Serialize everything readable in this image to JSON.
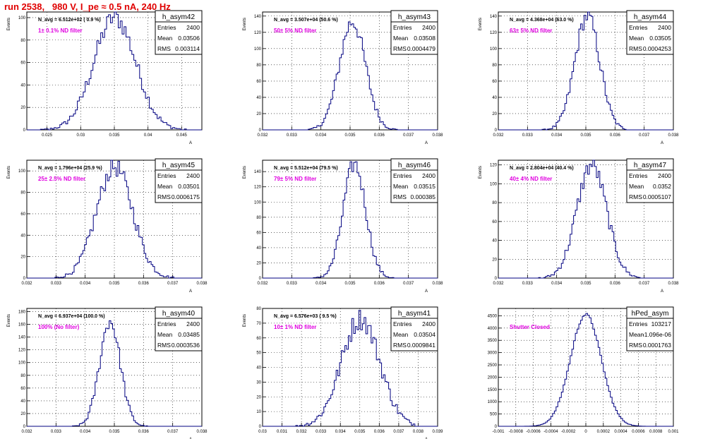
{
  "header": {
    "title": "run 2538,   980 V, I_pe ≈ 0.5 nA, 240 Hz"
  },
  "colors": {
    "hist_line": "#000080",
    "annotation": "#e000e0",
    "title": "#e00000",
    "grid": "#000000"
  },
  "chart_data": [
    {
      "type": "bar",
      "name": "h_asym42",
      "ylabel": "Events",
      "xlabel": "A",
      "navg": "N_avg = 6.512e+02 ( 0.9 %)",
      "filter": "1± 0.1% ND filter",
      "stats": {
        "entries": "2400",
        "mean": "0.03506",
        "rms": "0.003114"
      },
      "xlim": [
        0.022,
        0.048
      ],
      "ylim": [
        0,
        105
      ],
      "xticks": [
        0.025,
        0.03,
        0.035,
        0.04,
        0.045
      ],
      "xtick_labels": [
        "0.025",
        "0.03",
        "0.035",
        "0.04",
        "0.045"
      ],
      "yticks": [
        0,
        20,
        40,
        60,
        80,
        100
      ],
      "ytick_labels": [
        "0",
        "20",
        "40",
        "60",
        "80",
        "100"
      ],
      "mean": 0.03506,
      "sigma": 0.003114,
      "peak": 100,
      "bins": 90
    },
    {
      "type": "bar",
      "name": "h_asym43",
      "ylabel": "Events",
      "xlabel": "A",
      "navg": "N_avg = 3.507e+04 (50.6 %)",
      "filter": "50± 5% ND filter",
      "stats": {
        "entries": "2400",
        "mean": "0.03508",
        "rms": "0.0004479"
      },
      "xlim": [
        0.032,
        0.038
      ],
      "ylim": [
        0,
        145
      ],
      "xticks": [
        0.032,
        0.033,
        0.034,
        0.035,
        0.036,
        0.037,
        0.038
      ],
      "xtick_labels": [
        "0.032",
        "0.033",
        "0.034",
        "0.035",
        "0.036",
        "0.037",
        "0.038"
      ],
      "yticks": [
        0,
        20,
        40,
        60,
        80,
        100,
        120,
        140
      ],
      "ytick_labels": [
        "0",
        "20",
        "40",
        "60",
        "80",
        "100",
        "120",
        "140"
      ],
      "mean": 0.03508,
      "sigma": 0.0004479,
      "peak": 133,
      "bins": 100
    },
    {
      "type": "bar",
      "name": "h_asym44",
      "ylabel": "Events",
      "xlabel": "A",
      "navg": "N_avg = 4.368e+04 (63.0 %)",
      "filter": "63± 5% ND filter",
      "stats": {
        "entries": "2400",
        "mean": "0.03505",
        "rms": "0.0004253"
      },
      "xlim": [
        0.032,
        0.038
      ],
      "ylim": [
        0,
        145
      ],
      "xticks": [
        0.032,
        0.033,
        0.034,
        0.035,
        0.036,
        0.037,
        0.038
      ],
      "xtick_labels": [
        "0.032",
        "0.033",
        "0.034",
        "0.035",
        "0.036",
        "0.037",
        "0.038"
      ],
      "yticks": [
        0,
        20,
        40,
        60,
        80,
        100,
        120,
        140
      ],
      "ytick_labels": [
        "0",
        "20",
        "40",
        "60",
        "80",
        "100",
        "120",
        "140"
      ],
      "mean": 0.03505,
      "sigma": 0.0004253,
      "peak": 140,
      "bins": 100
    },
    {
      "type": "bar",
      "name": "h_asym45",
      "ylabel": "Events",
      "xlabel": "A",
      "navg": "N_avg = 1.796e+04 (25.9 %)",
      "filter": "25± 2.5% ND filter",
      "stats": {
        "entries": "2400",
        "mean": "0.03501",
        "rms": "0.0006175"
      },
      "xlim": [
        0.032,
        0.038
      ],
      "ylim": [
        0,
        110
      ],
      "xticks": [
        0.032,
        0.033,
        0.034,
        0.035,
        0.036,
        0.037,
        0.038
      ],
      "xtick_labels": [
        "0.032",
        "0.033",
        "0.034",
        "0.035",
        "0.036",
        "0.037",
        "0.038"
      ],
      "yticks": [
        0,
        20,
        40,
        60,
        80,
        100
      ],
      "ytick_labels": [
        "0",
        "20",
        "40",
        "60",
        "80",
        "100"
      ],
      "mean": 0.03501,
      "sigma": 0.0006175,
      "peak": 104,
      "bins": 100
    },
    {
      "type": "bar",
      "name": "h_asym46",
      "ylabel": "Events",
      "xlabel": "A",
      "navg": "N_avg = 5.512e+04 (79.5 %)",
      "filter": "79± 5% ND filter",
      "stats": {
        "entries": "2400",
        "mean": "0.03515",
        "rms": "0.000385"
      },
      "xlim": [
        0.032,
        0.038
      ],
      "ylim": [
        0,
        155
      ],
      "xticks": [
        0.032,
        0.033,
        0.034,
        0.035,
        0.036,
        0.037,
        0.038
      ],
      "xtick_labels": [
        "0.032",
        "0.033",
        "0.034",
        "0.035",
        "0.036",
        "0.037",
        "0.038"
      ],
      "yticks": [
        0,
        20,
        40,
        60,
        80,
        100,
        120,
        140
      ],
      "ytick_labels": [
        "0",
        "20",
        "40",
        "60",
        "80",
        "100",
        "120",
        "140"
      ],
      "mean": 0.03515,
      "sigma": 0.000385,
      "peak": 150,
      "bins": 100
    },
    {
      "type": "bar",
      "name": "h_asym47",
      "ylabel": "Events",
      "xlabel": "A",
      "navg": "N_avg = 2.804e+04 (40.4 %)",
      "filter": "40± 4% ND filter",
      "stats": {
        "entries": "2400",
        "mean": "0.0352",
        "rms": "0.0005107"
      },
      "xlim": [
        0.032,
        0.038
      ],
      "ylim": [
        0,
        125
      ],
      "xticks": [
        0.032,
        0.033,
        0.034,
        0.035,
        0.036,
        0.037,
        0.038
      ],
      "xtick_labels": [
        "0.032",
        "0.033",
        "0.034",
        "0.035",
        "0.036",
        "0.037",
        "0.038"
      ],
      "yticks": [
        0,
        20,
        40,
        60,
        80,
        100,
        120
      ],
      "ytick_labels": [
        "0",
        "20",
        "40",
        "60",
        "80",
        "100",
        "120"
      ],
      "mean": 0.0352,
      "sigma": 0.0005107,
      "peak": 120,
      "bins": 100
    },
    {
      "type": "bar",
      "name": "h_asym40",
      "ylabel": "Events",
      "xlabel": "A",
      "navg": "N_avg = 6.937e+04 (100.0 %)",
      "filter": "100% (No filter)",
      "stats": {
        "entries": "2400",
        "mean": "0.03485",
        "rms": "0.0003536"
      },
      "xlim": [
        0.032,
        0.038
      ],
      "ylim": [
        0,
        185
      ],
      "xticks": [
        0.032,
        0.033,
        0.034,
        0.035,
        0.036,
        0.037,
        0.038
      ],
      "xtick_labels": [
        "0.032",
        "0.033",
        "0.034",
        "0.035",
        "0.036",
        "0.037",
        "0.038"
      ],
      "yticks": [
        0,
        20,
        40,
        60,
        80,
        100,
        120,
        140,
        160,
        180
      ],
      "ytick_labels": [
        "0",
        "20",
        "40",
        "60",
        "80",
        "100",
        "120",
        "140",
        "160",
        "180"
      ],
      "mean": 0.03485,
      "sigma": 0.0003536,
      "peak": 165,
      "bins": 100
    },
    {
      "type": "bar",
      "name": "h_asym41",
      "ylabel": "Events",
      "xlabel": "A",
      "navg": "N_avg = 6.576e+03 ( 9.5 %)",
      "filter": "10± 1% ND filter",
      "stats": {
        "entries": "2400",
        "mean": "0.03504",
        "rms": "0.0009841"
      },
      "xlim": [
        0.03,
        0.039
      ],
      "ylim": [
        0,
        80
      ],
      "xticks": [
        0.03,
        0.031,
        0.032,
        0.033,
        0.034,
        0.035,
        0.036,
        0.037,
        0.038,
        0.039
      ],
      "xtick_labels": [
        "0.03",
        "0.031",
        "0.032",
        "0.033",
        "0.034",
        "0.035",
        "0.036",
        "0.037",
        "0.038",
        "0.039"
      ],
      "yticks": [
        0,
        10,
        20,
        30,
        40,
        50,
        60,
        70,
        80
      ],
      "ytick_labels": [
        "0",
        "10",
        "20",
        "30",
        "40",
        "50",
        "60",
        "70",
        "80"
      ],
      "mean": 0.03504,
      "sigma": 0.0009841,
      "peak": 73,
      "bins": 100
    },
    {
      "type": "bar",
      "name": "hPed_asym",
      "ylabel": "",
      "xlabel": "",
      "navg": "",
      "filter": "Shutter Closed",
      "stats": {
        "entries": "103217",
        "mean": "-1.096e-06",
        "rms": "0.0001763"
      },
      "xlim": [
        -0.001,
        0.001
      ],
      "ylim": [
        0,
        4800
      ],
      "xticks": [
        -0.001,
        -0.0008,
        -0.0006,
        -0.0004,
        -0.0002,
        0,
        0.0002,
        0.0004,
        0.0006,
        0.0008,
        0.001
      ],
      "xtick_labels": [
        "-0.001",
        "-0.0008",
        "-0.0006",
        "-0.0004",
        "-0.0002",
        "0",
        "0.0002",
        "0.0004",
        "0.0006",
        "0.0008",
        "0.001"
      ],
      "yticks": [
        0,
        500,
        1000,
        1500,
        2000,
        2500,
        3000,
        3500,
        4000,
        4500
      ],
      "ytick_labels": [
        "0",
        "500",
        "1000",
        "1500",
        "2000",
        "2500",
        "3000",
        "3500",
        "4000",
        "4500"
      ],
      "mean": 0,
      "sigma": 0.0001763,
      "peak": 4550,
      "bins": 100
    }
  ]
}
